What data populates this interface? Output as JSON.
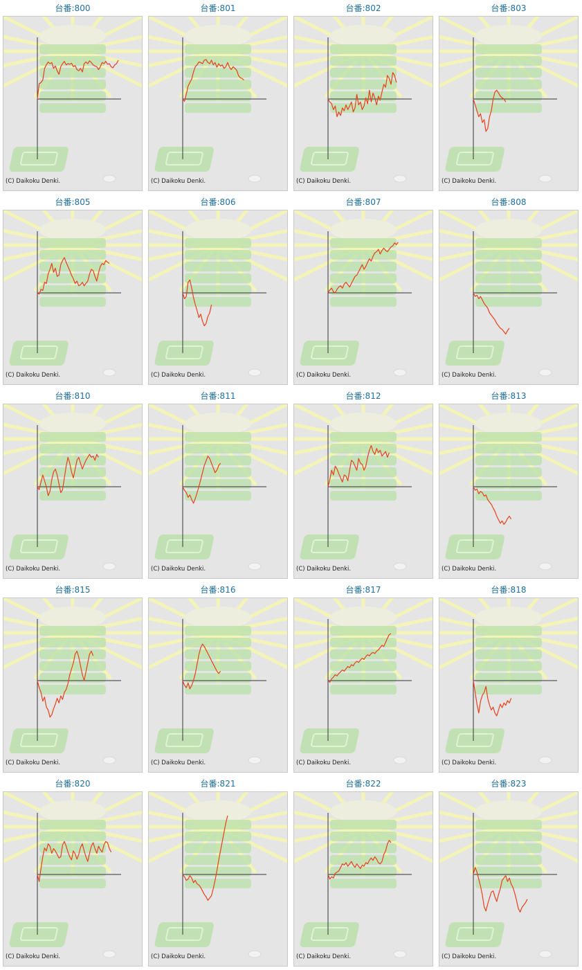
{
  "copyright": "(C) Daikoku Denki.",
  "colors": {
    "line": "#e8401a",
    "axis": "#333333",
    "title": "#1f6f9f",
    "background": "#e5e5e5",
    "decoration_green": "#b8e0a8",
    "decoration_rays": "#f4f4b8"
  },
  "icons": {
    "background": "slot-machine-illustration"
  },
  "chart_data": [
    {
      "type": "line",
      "title": "台番:800",
      "values": [
        0,
        26,
        28,
        32,
        52,
        58,
        63,
        60,
        62,
        52,
        56,
        48,
        42,
        55,
        60,
        64,
        58,
        60,
        59,
        61,
        55,
        57,
        50,
        48,
        52,
        46,
        60,
        63,
        60,
        65,
        62,
        58,
        56,
        55,
        50,
        55,
        62,
        60,
        64,
        59,
        60,
        55,
        53,
        58,
        60,
        66
      ]
    },
    {
      "type": "line",
      "title": "台番:801",
      "values": [
        0,
        -4,
        8,
        22,
        28,
        34,
        46,
        55,
        58,
        63,
        62,
        60,
        66,
        67,
        62,
        60,
        66,
        58,
        62,
        54,
        60,
        56,
        58,
        52,
        55,
        62,
        54,
        50,
        55,
        52,
        49,
        40,
        36,
        35,
        32
      ]
    },
    {
      "type": "line",
      "title": "台番:802",
      "values": [
        0,
        -5,
        -8,
        -18,
        -12,
        -30,
        -22,
        -28,
        -15,
        -20,
        -10,
        -18,
        -12,
        -5,
        -22,
        -15,
        8,
        -10,
        -5,
        -18,
        -12,
        2,
        -8,
        15,
        -5,
        10,
        2,
        -10,
        5,
        -2,
        12,
        25,
        20,
        40,
        35,
        25,
        45,
        40,
        28
      ]
    },
    {
      "type": "line",
      "title": "台番:803",
      "values": [
        0,
        -10,
        -20,
        -30,
        -25,
        -40,
        -35,
        -55,
        -50,
        -30,
        -20,
        0,
        12,
        15,
        10,
        5,
        2,
        0,
        -5
      ]
    },
    {
      "type": "line",
      "title": "台番:805",
      "values": [
        0,
        -2,
        6,
        4,
        18,
        16,
        32,
        40,
        50,
        35,
        42,
        28,
        30,
        48,
        55,
        60,
        52,
        45,
        38,
        30,
        24,
        16,
        20,
        12,
        14,
        18,
        12,
        16,
        20,
        32,
        40,
        38,
        28,
        20,
        34,
        45,
        50,
        48,
        55,
        52,
        50
      ]
    },
    {
      "type": "line",
      "title": "台番:806",
      "values": [
        0,
        -10,
        -6,
        18,
        22,
        8,
        -8,
        -20,
        -30,
        -42,
        -36,
        -48,
        -56,
        -52,
        -40,
        -34,
        -20
      ]
    },
    {
      "type": "line",
      "title": "台番:807",
      "values": [
        0,
        5,
        8,
        2,
        0,
        6,
        10,
        12,
        8,
        15,
        18,
        14,
        10,
        16,
        22,
        28,
        30,
        36,
        42,
        48,
        40,
        45,
        52,
        58,
        54,
        62,
        68,
        70,
        74,
        66,
        72,
        76,
        72,
        70,
        74,
        78,
        80,
        85,
        82,
        86
      ]
    },
    {
      "type": "line",
      "title": "台番:808",
      "values": [
        0,
        -6,
        -4,
        -10,
        -6,
        -12,
        -18,
        -22,
        -26,
        -34,
        -38,
        -42,
        -46,
        -52,
        -56,
        -60,
        -62,
        -66,
        -70,
        -64,
        -60
      ]
    },
    {
      "type": "line",
      "title": "台番:810",
      "values": [
        0,
        -5,
        8,
        20,
        10,
        0,
        -15,
        -8,
        12,
        25,
        30,
        20,
        5,
        -10,
        -5,
        15,
        35,
        50,
        40,
        25,
        15,
        30,
        45,
        50,
        40,
        30,
        38,
        45,
        50,
        55,
        50,
        52,
        45,
        55,
        50
      ]
    },
    {
      "type": "line",
      "title": "台番:811",
      "values": [
        0,
        -6,
        -10,
        -18,
        -14,
        -22,
        -28,
        -20,
        -10,
        0,
        12,
        24,
        36,
        44,
        52,
        48,
        40,
        32,
        24,
        28,
        36,
        40
      ]
    },
    {
      "type": "line",
      "title": "台番:812",
      "values": [
        0,
        12,
        28,
        20,
        35,
        30,
        22,
        15,
        8,
        20,
        18,
        10,
        28,
        45,
        42,
        35,
        28,
        48,
        40,
        38,
        28,
        35,
        50,
        62,
        70,
        60,
        55,
        65,
        58,
        62,
        52,
        56,
        60,
        50,
        58
      ]
    },
    {
      "type": "line",
      "title": "台番:813",
      "values": [
        0,
        -6,
        -4,
        -12,
        -8,
        -10,
        -16,
        -14,
        -22,
        -26,
        -30,
        -36,
        -42,
        -50,
        -56,
        -62,
        -58,
        -64,
        -60,
        -54,
        -50,
        -55
      ]
    },
    {
      "type": "line",
      "title": "台番:815",
      "values": [
        0,
        -12,
        -20,
        -35,
        -28,
        -45,
        -50,
        -62,
        -58,
        -48,
        -40,
        -30,
        -38,
        -26,
        -32,
        -20,
        -15,
        -5,
        10,
        20,
        30,
        45,
        50,
        40,
        25,
        10,
        0,
        15,
        30,
        45,
        50,
        42
      ]
    },
    {
      "type": "line",
      "title": "台番:816",
      "values": [
        0,
        -8,
        -12,
        -4,
        -14,
        -8,
        0,
        12,
        28,
        44,
        56,
        62,
        58,
        52,
        46,
        40,
        34,
        28,
        22,
        16,
        12,
        16
      ]
    },
    {
      "type": "line",
      "title": "台番:817",
      "values": [
        0,
        -3,
        3,
        6,
        10,
        8,
        12,
        15,
        18,
        16,
        20,
        24,
        22,
        27,
        25,
        30,
        33,
        31,
        35,
        38,
        36,
        41,
        44,
        42,
        46,
        48,
        46,
        50,
        52,
        56,
        60,
        58,
        65,
        72,
        78,
        80
      ]
    },
    {
      "type": "line",
      "title": "台番:818",
      "values": [
        0,
        -20,
        -40,
        -55,
        -35,
        -25,
        -20,
        -10,
        -30,
        -42,
        -50,
        -45,
        -55,
        -60,
        -50,
        -40,
        -46,
        -38,
        -42,
        -34,
        -38,
        -30
      ]
    },
    {
      "type": "line",
      "title": "台番:820",
      "values": [
        0,
        -12,
        10,
        30,
        45,
        40,
        52,
        48,
        36,
        44,
        40,
        34,
        28,
        30,
        50,
        56,
        48,
        38,
        30,
        25,
        40,
        35,
        26,
        34,
        46,
        52,
        40,
        30,
        22,
        36,
        48,
        54,
        44,
        36,
        48,
        42,
        38,
        50,
        56,
        54,
        44,
        38
      ]
    },
    {
      "type": "line",
      "title": "台番:821",
      "values": [
        0,
        -4,
        -10,
        -8,
        -2,
        -6,
        -14,
        -10,
        -16,
        -18,
        -22,
        -28,
        -34,
        -38,
        -44,
        -40,
        -36,
        -24,
        -10,
        6,
        24,
        40,
        56,
        72,
        88,
        100
      ]
    },
    {
      "type": "line",
      "title": "台番:822",
      "values": [
        0,
        -8,
        -4,
        -6,
        2,
        4,
        6,
        12,
        18,
        16,
        20,
        14,
        18,
        22,
        16,
        12,
        18,
        14,
        10,
        16,
        14,
        20,
        18,
        24,
        28,
        24,
        30,
        26,
        20,
        18,
        22,
        34,
        40,
        52,
        58,
        54
      ]
    },
    {
      "type": "line",
      "title": "台番:823",
      "values": [
        0,
        12,
        4,
        -8,
        -20,
        -35,
        -55,
        -62,
        -50,
        -40,
        -30,
        -28,
        -38,
        -46,
        -34,
        -24,
        -10,
        -6,
        -2,
        -12,
        -6,
        -16,
        -22,
        -32,
        -44,
        -58,
        -64,
        -56,
        -52,
        -48,
        -42
      ]
    }
  ]
}
